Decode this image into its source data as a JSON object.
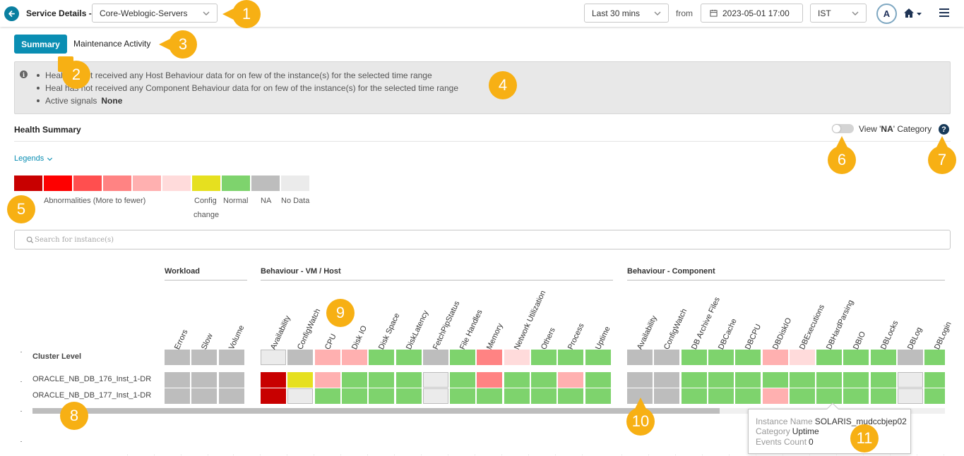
{
  "header": {
    "service_label": "Service Details -",
    "service_select": "Core-Weblogic-Servers",
    "time_range": "Last 30 mins",
    "from_label": "from",
    "from_datetime": "2023-05-01 17:00",
    "timezone": "IST",
    "avatar_initial": "A"
  },
  "tabs": {
    "summary": "Summary",
    "maintenance": "Maintenance Activity"
  },
  "info": {
    "line1": "Heal has not received any Host Behaviour data for on few of the instance(s) for the selected time range",
    "line2": "Heal has not received any Component Behaviour data for on few of the instance(s) for the selected time range",
    "signals_label": "Active signals",
    "signals_value": "None"
  },
  "health_summary": {
    "title": "Health Summary",
    "view_na_prefix": "View '",
    "view_na_bold": "NA",
    "view_na_suffix": "' Category",
    "na_toggle_on": false
  },
  "legends": {
    "toggle_label": "Legends",
    "colors": [
      "#c80000",
      "#fe0000",
      "#ff4f4f",
      "#ff8383",
      "#ffb0b0",
      "#ffdbdb",
      "#e6e01f",
      "#7ed36d",
      "#bdbdbd",
      "#ebebeb"
    ],
    "abnormalities": "Abnormalities (More to fewer)",
    "config_change_1": "Config",
    "config_change_2": "change",
    "normal": "Normal",
    "na": "NA",
    "no_data": "No Data"
  },
  "search": {
    "placeholder": "Search for instance(s)"
  },
  "heatmap": {
    "groups": [
      "Workload",
      "Behaviour - VM / Host",
      "Behaviour - Component"
    ],
    "workload_cols": [
      "Errors",
      "Slow",
      "Volume"
    ],
    "host_cols": [
      "Availability",
      "ConfigWatch",
      "CPU",
      "Disk IO",
      "Disk Space",
      "DiskLatency",
      "FetchPipStatus",
      "File Handles",
      "Memory",
      "Network Utilization",
      "Others",
      "Process",
      "Uptime"
    ],
    "component_cols": [
      "Availability",
      "ConfigWatch",
      "DB Archive Files",
      "DBCache",
      "DBCPU",
      "DBDiskIO",
      "DBExecutions",
      "DBHardParsing",
      "DBIO",
      "DBLocks",
      "DBLog",
      "DBLogin"
    ],
    "rows": [
      {
        "name": "Cluster Level",
        "workload": [
          "na",
          "na",
          "na"
        ],
        "host": [
          "nodata",
          "na",
          "a5",
          "a5",
          "normal",
          "normal",
          "na",
          "normal",
          "a4",
          "a6",
          "normal",
          "normal",
          "normal"
        ],
        "component": [
          "na",
          "na",
          "normal",
          "normal",
          "normal",
          "a5",
          "a6",
          "normal",
          "normal",
          "normal",
          "na",
          "normal"
        ]
      },
      {
        "name": "ORACLE_NB_DB_176_Inst_1-DR",
        "workload": [
          "na",
          "na",
          "na"
        ],
        "host": [
          "a1",
          "config",
          "a5",
          "normal",
          "normal",
          "normal",
          "nodata",
          "normal",
          "a4",
          "normal",
          "normal",
          "a5",
          "normal"
        ],
        "component": [
          "na",
          "na",
          "normal",
          "normal",
          "normal",
          "normal",
          "normal",
          "normal",
          "normal",
          "normal",
          "nodata",
          "normal"
        ]
      },
      {
        "name": "ORACLE_NB_DB_177_Inst_1-DR",
        "workload": [
          "na",
          "na",
          "na"
        ],
        "host": [
          "a1",
          "nodata",
          "normal",
          "normal",
          "normal",
          "normal",
          "nodata",
          "normal",
          "normal",
          "normal",
          "normal",
          "normal",
          "normal"
        ],
        "component": [
          "na",
          "na",
          "normal",
          "normal",
          "normal",
          "a5",
          "normal",
          "normal",
          "normal",
          "normal",
          "nodata",
          "normal"
        ]
      }
    ],
    "cluster_level_label": "Cluster Level"
  },
  "tooltip": {
    "instance_label": "Instance Name",
    "instance_value": "SOLARIS_mudccbjep02",
    "category_label": "Category",
    "category_value": "Uptime",
    "events_label": "Events Count",
    "events_value": "0"
  },
  "callouts": [
    "1",
    "2",
    "3",
    "4",
    "5",
    "6",
    "7",
    "8",
    "9",
    "10",
    "11"
  ],
  "icons": [
    "back-arrow-icon",
    "chevron-down-icon",
    "calendar-icon",
    "home-icon",
    "hamburger-menu-icon",
    "info-icon",
    "help-icon",
    "search-icon"
  ]
}
